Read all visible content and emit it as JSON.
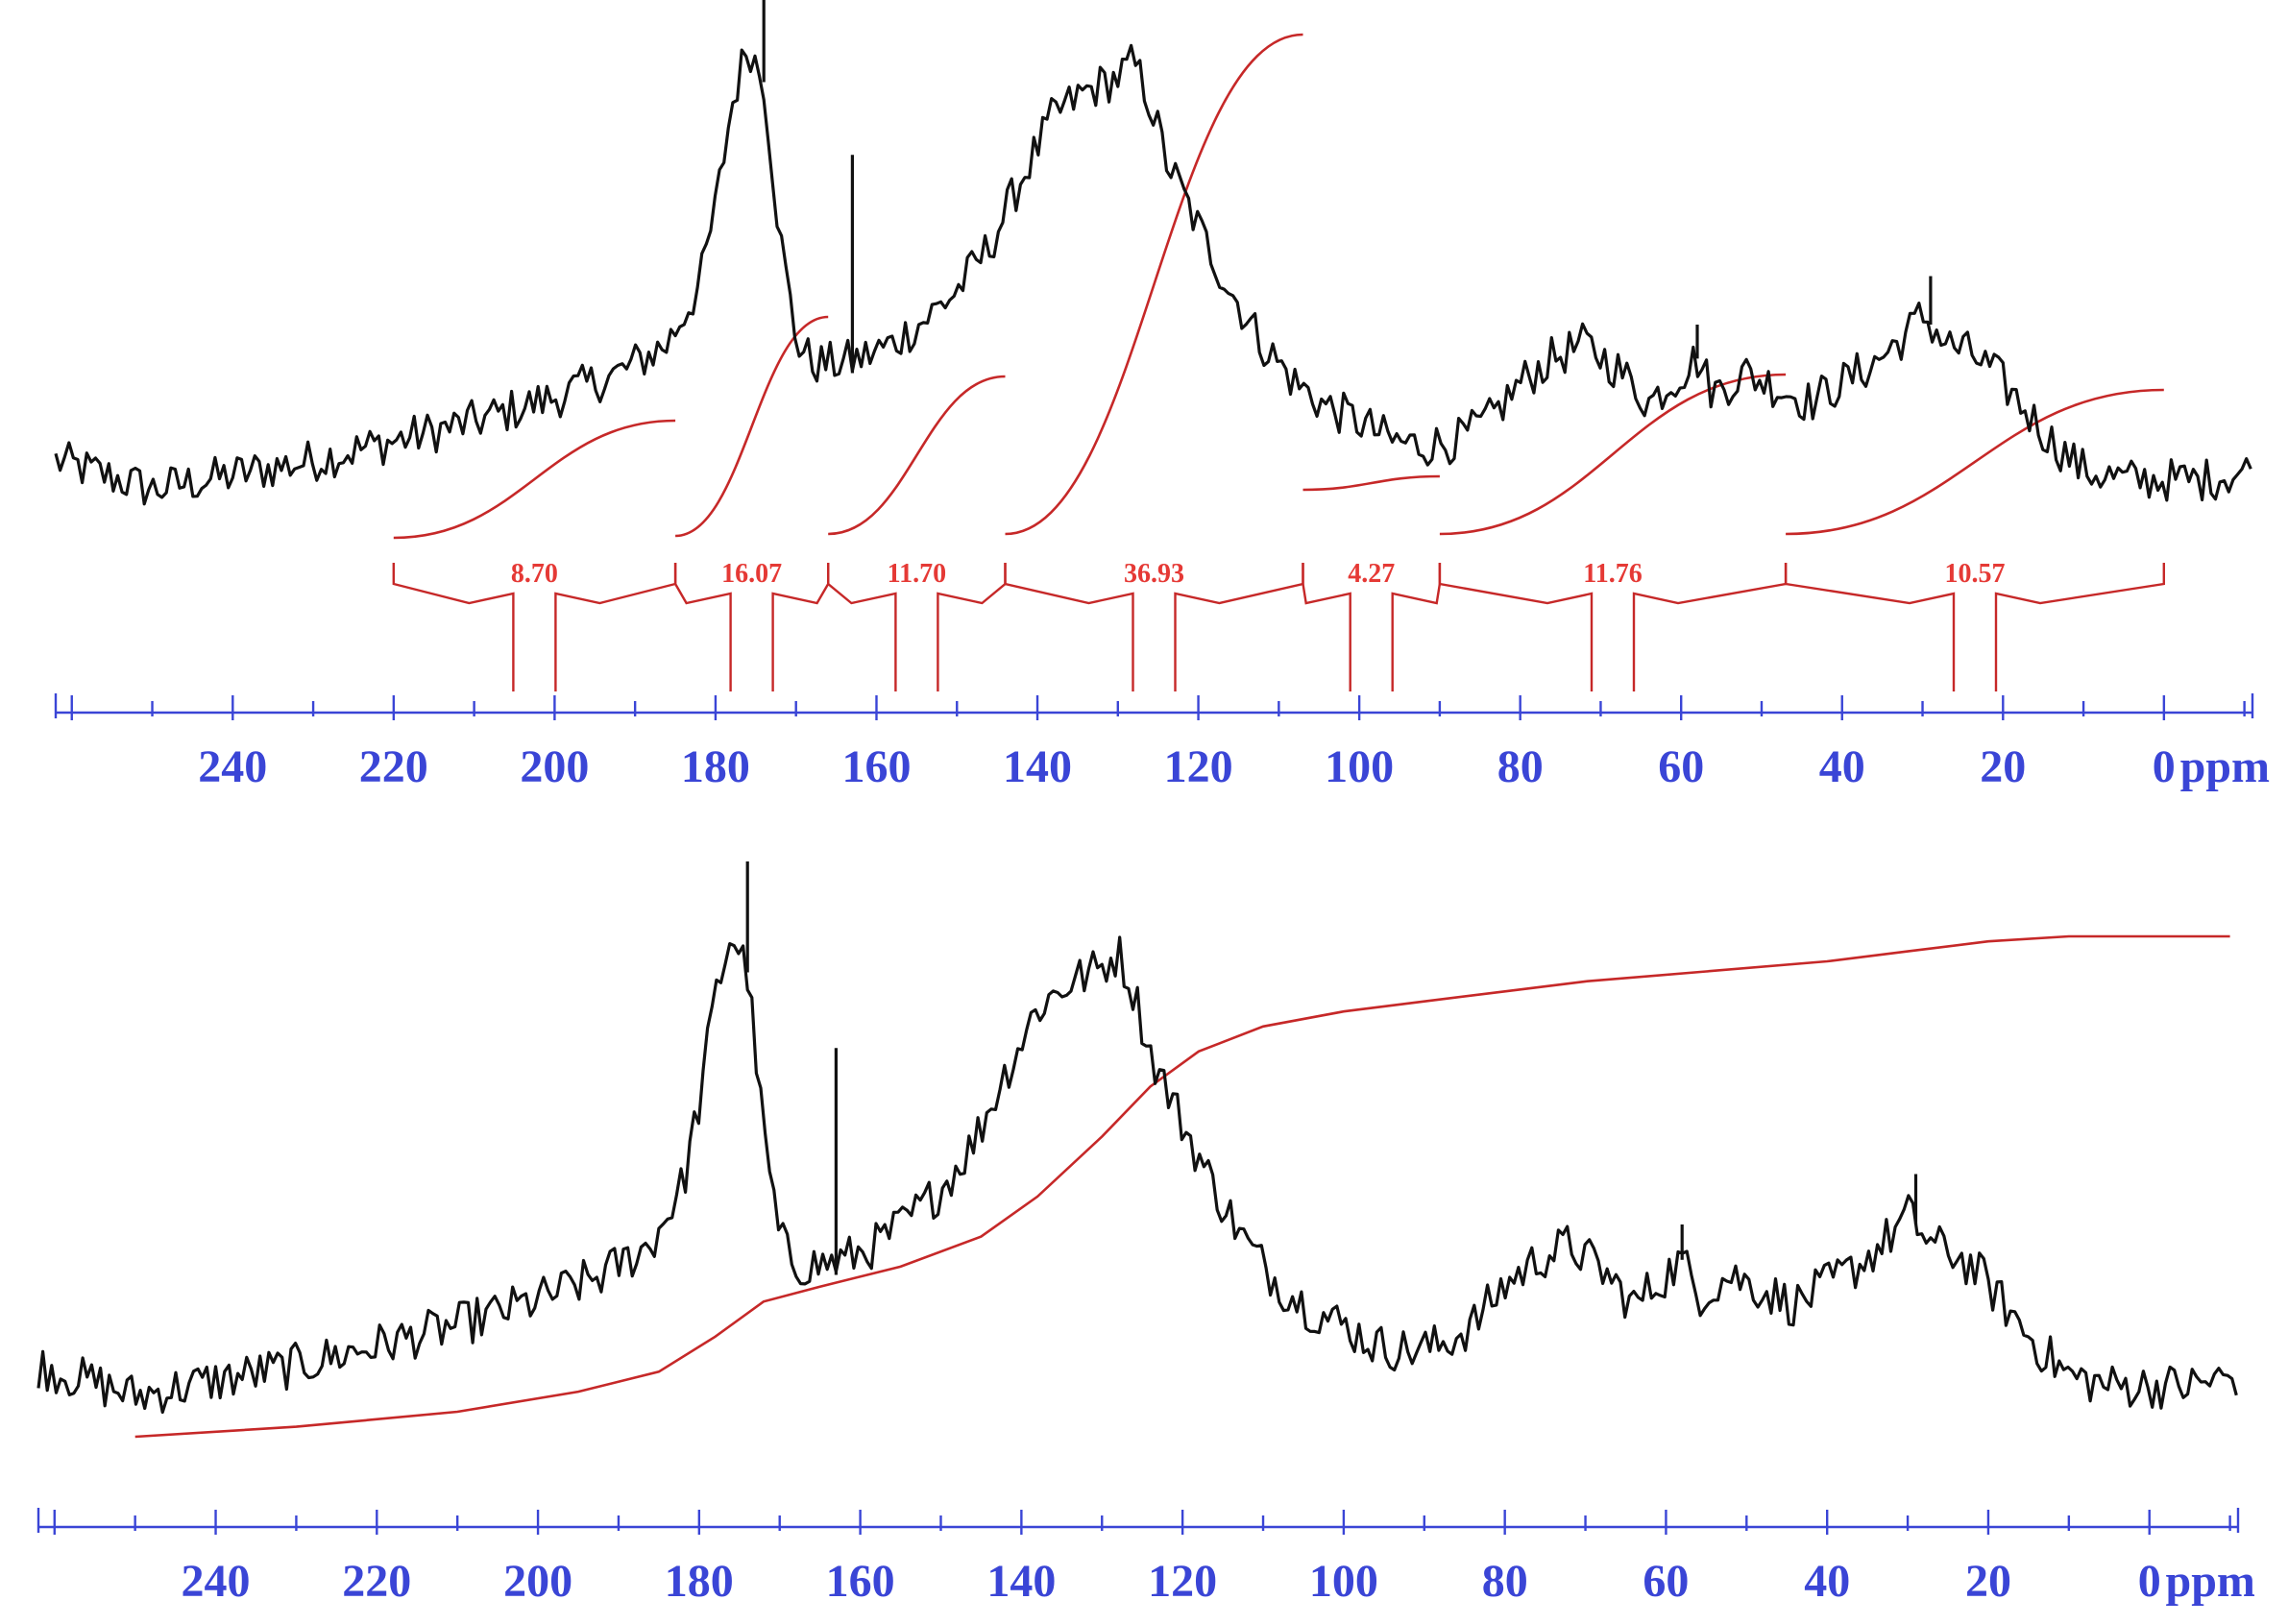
{
  "colors": {
    "spectrum": "#111111",
    "integral": "#c62828",
    "integral_text": "#e53935",
    "axis": "#3a45d6"
  },
  "chart_data": [
    {
      "type": "line",
      "title": "",
      "xlabel": "ppm",
      "xlim": [
        262,
        -11
      ],
      "x_reversed": true,
      "tick_labels": [
        "240",
        "220",
        "200",
        "180",
        "160",
        "140",
        "120",
        "100",
        "80",
        "60",
        "40",
        "20",
        "0"
      ],
      "series": [
        {
          "points": [
            [
              262,
              0.12
            ],
            [
              250,
              0.06
            ],
            [
              240,
              0.09
            ],
            [
              230,
              0.12
            ],
            [
              220,
              0.16
            ],
            [
              210,
              0.2
            ],
            [
              200,
              0.25
            ],
            [
              192,
              0.3
            ],
            [
              186,
              0.36
            ],
            [
              182,
              0.48
            ],
            [
              180,
              0.64
            ],
            [
              178,
              0.85
            ],
            [
              176,
              0.98
            ],
            [
              174,
              0.9
            ],
            [
              172,
              0.58
            ],
            [
              170,
              0.37
            ],
            [
              168,
              0.32
            ],
            [
              165,
              0.32
            ],
            [
              162,
              0.33
            ],
            [
              158,
              0.36
            ],
            [
              154,
              0.41
            ],
            [
              150,
              0.47
            ],
            [
              146,
              0.56
            ],
            [
              142,
              0.7
            ],
            [
              138,
              0.83
            ],
            [
              134,
              0.88
            ],
            [
              130,
              0.91
            ],
            [
              128,
              0.94
            ],
            [
              126,
              0.86
            ],
            [
              124,
              0.74
            ],
            [
              120,
              0.6
            ],
            [
              116,
              0.47
            ],
            [
              112,
              0.36
            ],
            [
              108,
              0.28
            ],
            [
              104,
              0.23
            ],
            [
              100,
              0.2
            ],
            [
              96,
              0.16
            ],
            [
              92,
              0.15
            ],
            [
              88,
              0.16
            ],
            [
              84,
              0.2
            ],
            [
              80,
              0.28
            ],
            [
              76,
              0.33
            ],
            [
              72,
              0.36
            ],
            [
              68,
              0.31
            ],
            [
              64,
              0.24
            ],
            [
              60,
              0.3
            ],
            [
              58,
              0.33
            ],
            [
              56,
              0.26
            ],
            [
              52,
              0.3
            ],
            [
              48,
              0.27
            ],
            [
              44,
              0.24
            ],
            [
              40,
              0.28
            ],
            [
              36,
              0.32
            ],
            [
              32,
              0.38
            ],
            [
              30,
              0.42
            ],
            [
              27,
              0.36
            ],
            [
              24,
              0.34
            ],
            [
              21,
              0.3
            ],
            [
              18,
              0.24
            ],
            [
              14,
              0.16
            ],
            [
              10,
              0.1
            ],
            [
              5,
              0.08
            ],
            [
              0,
              0.08
            ],
            [
              -5,
              0.08
            ],
            [
              -11,
              0.1
            ]
          ],
          "spikes": [
            [
              174,
              1.12
            ],
            [
              163,
              0.75
            ],
            [
              163,
              0.3
            ],
            [
              29,
              0.5
            ],
            [
              58,
              0.4
            ]
          ]
        }
      ],
      "integrals": [
        {
          "from": 220,
          "to": 185,
          "value": "8.70"
        },
        {
          "from": 185,
          "to": 166,
          "value": "16.07"
        },
        {
          "from": 166,
          "to": 144,
          "value": "11.70"
        },
        {
          "from": 144,
          "to": 107,
          "value": "36.93"
        },
        {
          "from": 107,
          "to": 90,
          "value": "4.27"
        },
        {
          "from": 90,
          "to": 47,
          "value": "11.76"
        },
        {
          "from": 47,
          "to": 0,
          "value": "10.57"
        }
      ]
    },
    {
      "type": "line",
      "title": "",
      "xlabel": "ppm",
      "xlim": [
        262,
        -11
      ],
      "x_reversed": true,
      "tick_labels": [
        "240",
        "220",
        "200",
        "180",
        "160",
        "140",
        "120",
        "100",
        "80",
        "60",
        "40",
        "20",
        "0"
      ],
      "series": [
        {
          "points": [
            [
              262,
              0.12
            ],
            [
              250,
              0.06
            ],
            [
              240,
              0.09
            ],
            [
              230,
              0.12
            ],
            [
              220,
              0.16
            ],
            [
              210,
              0.2
            ],
            [
              200,
              0.25
            ],
            [
              192,
              0.3
            ],
            [
              186,
              0.36
            ],
            [
              182,
              0.48
            ],
            [
              180,
              0.64
            ],
            [
              178,
              0.85
            ],
            [
              176,
              0.98
            ],
            [
              174,
              0.9
            ],
            [
              172,
              0.58
            ],
            [
              170,
              0.37
            ],
            [
              168,
              0.32
            ],
            [
              165,
              0.32
            ],
            [
              162,
              0.33
            ],
            [
              158,
              0.36
            ],
            [
              154,
              0.41
            ],
            [
              150,
              0.47
            ],
            [
              146,
              0.56
            ],
            [
              142,
              0.7
            ],
            [
              138,
              0.83
            ],
            [
              134,
              0.88
            ],
            [
              130,
              0.91
            ],
            [
              128,
              0.94
            ],
            [
              126,
              0.86
            ],
            [
              124,
              0.74
            ],
            [
              120,
              0.6
            ],
            [
              116,
              0.47
            ],
            [
              112,
              0.36
            ],
            [
              108,
              0.28
            ],
            [
              104,
              0.23
            ],
            [
              100,
              0.2
            ],
            [
              96,
              0.16
            ],
            [
              92,
              0.15
            ],
            [
              88,
              0.16
            ],
            [
              84,
              0.2
            ],
            [
              80,
              0.28
            ],
            [
              76,
              0.33
            ],
            [
              72,
              0.36
            ],
            [
              68,
              0.31
            ],
            [
              64,
              0.24
            ],
            [
              60,
              0.3
            ],
            [
              58,
              0.33
            ],
            [
              56,
              0.26
            ],
            [
              52,
              0.3
            ],
            [
              48,
              0.27
            ],
            [
              44,
              0.24
            ],
            [
              40,
              0.28
            ],
            [
              36,
              0.32
            ],
            [
              32,
              0.38
            ],
            [
              30,
              0.42
            ],
            [
              27,
              0.36
            ],
            [
              24,
              0.34
            ],
            [
              21,
              0.3
            ],
            [
              18,
              0.24
            ],
            [
              14,
              0.16
            ],
            [
              10,
              0.1
            ],
            [
              5,
              0.08
            ],
            [
              0,
              0.08
            ],
            [
              -5,
              0.08
            ],
            [
              -11,
              0.1
            ]
          ],
          "spikes": [
            [
              174,
              1.12
            ],
            [
              163,
              0.75
            ],
            [
              163,
              0.3
            ],
            [
              29,
              0.5
            ],
            [
              58,
              0.4
            ]
          ]
        }
      ],
      "cumulative_integral": [
        [
          250,
          0.0
        ],
        [
          230,
          0.02
        ],
        [
          210,
          0.05
        ],
        [
          195,
          0.09
        ],
        [
          185,
          0.13
        ],
        [
          178,
          0.2
        ],
        [
          172,
          0.27
        ],
        [
          165,
          0.3
        ],
        [
          155,
          0.34
        ],
        [
          145,
          0.4
        ],
        [
          138,
          0.48
        ],
        [
          130,
          0.6
        ],
        [
          124,
          0.7
        ],
        [
          118,
          0.77
        ],
        [
          110,
          0.82
        ],
        [
          100,
          0.85
        ],
        [
          90,
          0.87
        ],
        [
          80,
          0.89
        ],
        [
          70,
          0.91
        ],
        [
          55,
          0.93
        ],
        [
          40,
          0.95
        ],
        [
          30,
          0.97
        ],
        [
          20,
          0.99
        ],
        [
          10,
          1.0
        ],
        [
          0,
          1.0
        ],
        [
          -10,
          1.0
        ]
      ]
    }
  ]
}
